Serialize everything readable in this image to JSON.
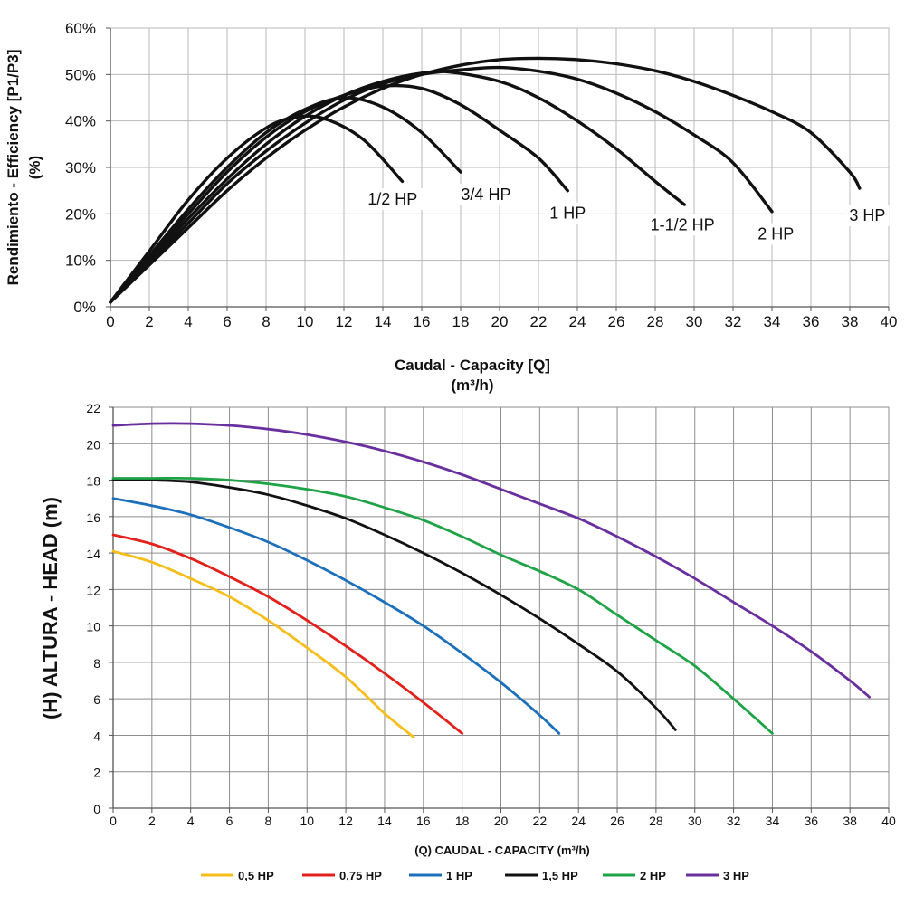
{
  "chart_data": [
    {
      "type": "line",
      "ylabel_lines": [
        "Rendimiento - Efficiency [P1/P3]",
        "(%)"
      ],
      "xlabel_lines": [
        "Caudal - Capacity [Q]",
        "(m³/h)"
      ],
      "xlim": [
        0,
        40
      ],
      "ylim": [
        0,
        60
      ],
      "x_ticks": [
        0,
        2,
        4,
        6,
        8,
        10,
        12,
        14,
        16,
        18,
        20,
        22,
        24,
        26,
        28,
        30,
        32,
        34,
        36,
        38,
        40
      ],
      "y_ticks": [
        "0%",
        "10%",
        "20%",
        "30%",
        "40%",
        "50%",
        "60%"
      ],
      "grid": true,
      "series": [
        {
          "name": "1/2 HP",
          "color": "#111111",
          "label_at": [
            14.5,
            22
          ],
          "points": [
            [
              0,
              1
            ],
            [
              2,
              12
            ],
            [
              4,
              23
            ],
            [
              6,
              32
            ],
            [
              8,
              38.5
            ],
            [
              9.5,
              40.8
            ],
            [
              11,
              40.5
            ],
            [
              13,
              36
            ],
            [
              15,
              27
            ]
          ]
        },
        {
          "name": "3/4 HP",
          "color": "#111111",
          "label_at": [
            19.3,
            23
          ],
          "points": [
            [
              0,
              1
            ],
            [
              2,
              11
            ],
            [
              4,
              21
            ],
            [
              6,
              30
            ],
            [
              8,
              37.5
            ],
            [
              10,
              42.5
            ],
            [
              12,
              45
            ],
            [
              14,
              43
            ],
            [
              16,
              37.5
            ],
            [
              18,
              29
            ]
          ]
        },
        {
          "name": "1 HP",
          "color": "#111111",
          "label_at": [
            23.5,
            19
          ],
          "points": [
            [
              0,
              1
            ],
            [
              2,
              10.5
            ],
            [
              4,
              20
            ],
            [
              6,
              29
            ],
            [
              8,
              36.5
            ],
            [
              10,
              42
            ],
            [
              12,
              45.5
            ],
            [
              14,
              47.5
            ],
            [
              16,
              47
            ],
            [
              18,
              43.5
            ],
            [
              20,
              38
            ],
            [
              22,
              32
            ],
            [
              23.5,
              25
            ]
          ]
        },
        {
          "name": "1-1/2 HP",
          "color": "#111111",
          "label_at": [
            29.4,
            16.5
          ],
          "points": [
            [
              0,
              1
            ],
            [
              2,
              10
            ],
            [
              4,
              19
            ],
            [
              6,
              27.5
            ],
            [
              8,
              35
            ],
            [
              10,
              41
            ],
            [
              12,
              45.5
            ],
            [
              14,
              48.5
            ],
            [
              16,
              50.3
            ],
            [
              17.5,
              50.5
            ],
            [
              20,
              48.5
            ],
            [
              22,
              45
            ],
            [
              24,
              40
            ],
            [
              26,
              34
            ],
            [
              28,
              27
            ],
            [
              29.5,
              22
            ]
          ]
        },
        {
          "name": "2 HP",
          "color": "#111111",
          "label_at": [
            34.2,
            14.5
          ],
          "points": [
            [
              0,
              1
            ],
            [
              2,
              9.5
            ],
            [
              4,
              18
            ],
            [
              6,
              26.5
            ],
            [
              8,
              33.5
            ],
            [
              10,
              39.5
            ],
            [
              12,
              44.5
            ],
            [
              14,
              48
            ],
            [
              16,
              50
            ],
            [
              18,
              51
            ],
            [
              20,
              51.5
            ],
            [
              22,
              50.7
            ],
            [
              24,
              49
            ],
            [
              26,
              46
            ],
            [
              28,
              42
            ],
            [
              30,
              37
            ],
            [
              32,
              31
            ],
            [
              34,
              20.5
            ]
          ]
        },
        {
          "name": "3 HP",
          "color": "#111111",
          "label_at": [
            38.9,
            18.5
          ],
          "points": [
            [
              0,
              1
            ],
            [
              2,
              9
            ],
            [
              4,
              17
            ],
            [
              6,
              25
            ],
            [
              8,
              32
            ],
            [
              10,
              38
            ],
            [
              12,
              43
            ],
            [
              14,
              47
            ],
            [
              16,
              50
            ],
            [
              18,
              52
            ],
            [
              20,
              53.2
            ],
            [
              22,
              53.5
            ],
            [
              24,
              53.2
            ],
            [
              26,
              52.3
            ],
            [
              28,
              50.8
            ],
            [
              30,
              48.5
            ],
            [
              32,
              45.5
            ],
            [
              34,
              42
            ],
            [
              36,
              37.5
            ],
            [
              38,
              29
            ],
            [
              38.5,
              25.5
            ]
          ]
        }
      ]
    },
    {
      "type": "line",
      "ylabel": "(H)  ALTURA - HEAD (m)",
      "xlabel": "(Q)  CAUDAL - CAPACITY (m³/h)",
      "xlim": [
        0,
        40
      ],
      "ylim": [
        0,
        22
      ],
      "x_ticks": [
        0,
        2,
        4,
        6,
        8,
        10,
        12,
        14,
        16,
        18,
        20,
        22,
        24,
        26,
        28,
        30,
        32,
        34,
        36,
        38,
        40
      ],
      "y_ticks": [
        0,
        2,
        4,
        6,
        8,
        10,
        12,
        14,
        16,
        18,
        20,
        22
      ],
      "grid": true,
      "legend": "bottom",
      "series": [
        {
          "name": "0,5 HP",
          "color": "#F5BE1B",
          "points": [
            [
              0,
              14.1
            ],
            [
              2,
              13.5
            ],
            [
              4,
              12.6
            ],
            [
              6,
              11.6
            ],
            [
              8,
              10.3
            ],
            [
              10,
              8.8
            ],
            [
              12,
              7.2
            ],
            [
              14,
              5.2
            ],
            [
              15.5,
              3.9
            ]
          ]
        },
        {
          "name": "0,75 HP",
          "color": "#E3211B",
          "points": [
            [
              0,
              15
            ],
            [
              2,
              14.5
            ],
            [
              4,
              13.7
            ],
            [
              6,
              12.7
            ],
            [
              8,
              11.6
            ],
            [
              10,
              10.3
            ],
            [
              12,
              8.9
            ],
            [
              14,
              7.4
            ],
            [
              16,
              5.8
            ],
            [
              18,
              4.1
            ]
          ]
        },
        {
          "name": "1 HP",
          "color": "#1C6FBA",
          "points": [
            [
              0,
              17
            ],
            [
              2,
              16.6
            ],
            [
              4,
              16.1
            ],
            [
              6,
              15.4
            ],
            [
              8,
              14.6
            ],
            [
              10,
              13.6
            ],
            [
              12,
              12.5
            ],
            [
              14,
              11.3
            ],
            [
              16,
              10
            ],
            [
              18,
              8.5
            ],
            [
              20,
              6.9
            ],
            [
              22,
              5.1
            ],
            [
              23,
              4.1
            ]
          ]
        },
        {
          "name": "1,5 HP",
          "color": "#111111",
          "points": [
            [
              0,
              18
            ],
            [
              2,
              18
            ],
            [
              4,
              17.9
            ],
            [
              6,
              17.6
            ],
            [
              8,
              17.2
            ],
            [
              10,
              16.6
            ],
            [
              12,
              15.9
            ],
            [
              14,
              15
            ],
            [
              16,
              14
            ],
            [
              18,
              12.9
            ],
            [
              20,
              11.7
            ],
            [
              22,
              10.4
            ],
            [
              24,
              9
            ],
            [
              26,
              7.5
            ],
            [
              28,
              5.5
            ],
            [
              29,
              4.3
            ]
          ]
        },
        {
          "name": "2 HP",
          "color": "#1FA347",
          "points": [
            [
              0,
              18.1
            ],
            [
              2,
              18.1
            ],
            [
              4,
              18.1
            ],
            [
              6,
              18
            ],
            [
              8,
              17.8
            ],
            [
              10,
              17.5
            ],
            [
              12,
              17.1
            ],
            [
              14,
              16.5
            ],
            [
              16,
              15.8
            ],
            [
              18,
              14.9
            ],
            [
              20,
              13.9
            ],
            [
              22,
              13
            ],
            [
              24,
              12
            ],
            [
              26,
              10.6
            ],
            [
              28,
              9.2
            ],
            [
              30,
              7.8
            ],
            [
              32,
              6
            ],
            [
              34,
              4.1
            ]
          ]
        },
        {
          "name": "3 HP",
          "color": "#6A2F9E",
          "points": [
            [
              0,
              21
            ],
            [
              2,
              21.1
            ],
            [
              4,
              21.1
            ],
            [
              6,
              21
            ],
            [
              8,
              20.8
            ],
            [
              10,
              20.5
            ],
            [
              12,
              20.1
            ],
            [
              14,
              19.6
            ],
            [
              16,
              19
            ],
            [
              18,
              18.3
            ],
            [
              20,
              17.5
            ],
            [
              22,
              16.7
            ],
            [
              24,
              15.9
            ],
            [
              26,
              14.9
            ],
            [
              28,
              13.8
            ],
            [
              30,
              12.6
            ],
            [
              32,
              11.3
            ],
            [
              34,
              10
            ],
            [
              36,
              8.6
            ],
            [
              38,
              7
            ],
            [
              39,
              6.1
            ]
          ]
        }
      ]
    }
  ]
}
